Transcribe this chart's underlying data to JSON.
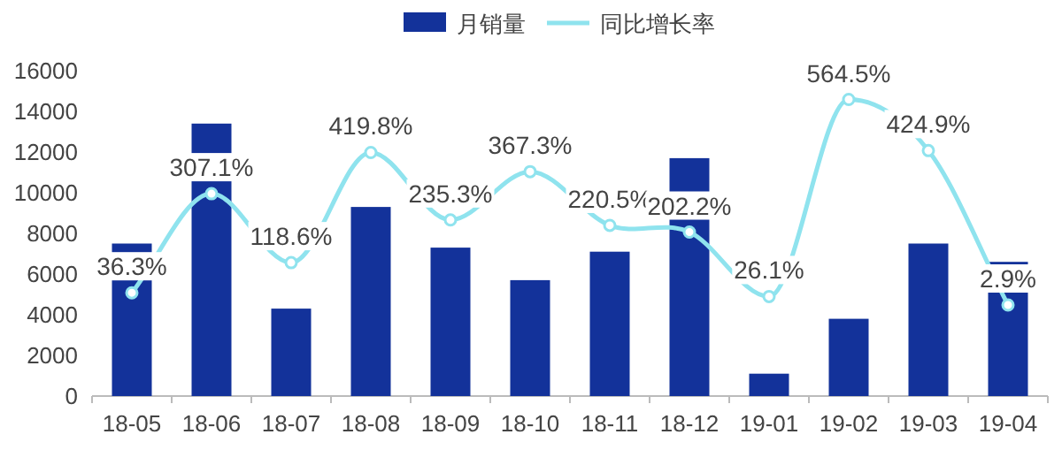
{
  "chart_data": {
    "type": "bar",
    "categories": [
      "18-05",
      "18-06",
      "18-07",
      "18-08",
      "18-09",
      "18-10",
      "18-11",
      "18-12",
      "19-01",
      "19-02",
      "19-03",
      "19-04"
    ],
    "series": [
      {
        "name": "月销量",
        "color": "#13329a",
        "values": [
          7500,
          13400,
          4300,
          9300,
          7300,
          5700,
          7100,
          11700,
          1100,
          3800,
          7500,
          6600
        ]
      },
      {
        "name": "同比增长率",
        "type": "line",
        "axis": "y2",
        "color": "#8fe3ee",
        "marker": "circle",
        "values": [
          36.3,
          307.1,
          118.6,
          419.8,
          235.3,
          367.3,
          220.5,
          202.2,
          26.1,
          564.5,
          424.9,
          2.9
        ],
        "value_labels": [
          "36.3%",
          "307.1%",
          "118.6%",
          "419.8%",
          "235.3%",
          "367.3%",
          "220.5%",
          "202.2%",
          "26.1%",
          "564.5%",
          "424.9%",
          "2.9%"
        ]
      }
    ],
    "ylim": [
      0,
      16000
    ],
    "yticks": [
      0,
      2000,
      4000,
      6000,
      8000,
      10000,
      12000,
      14000,
      16000
    ],
    "grid": false,
    "legend": "top"
  }
}
